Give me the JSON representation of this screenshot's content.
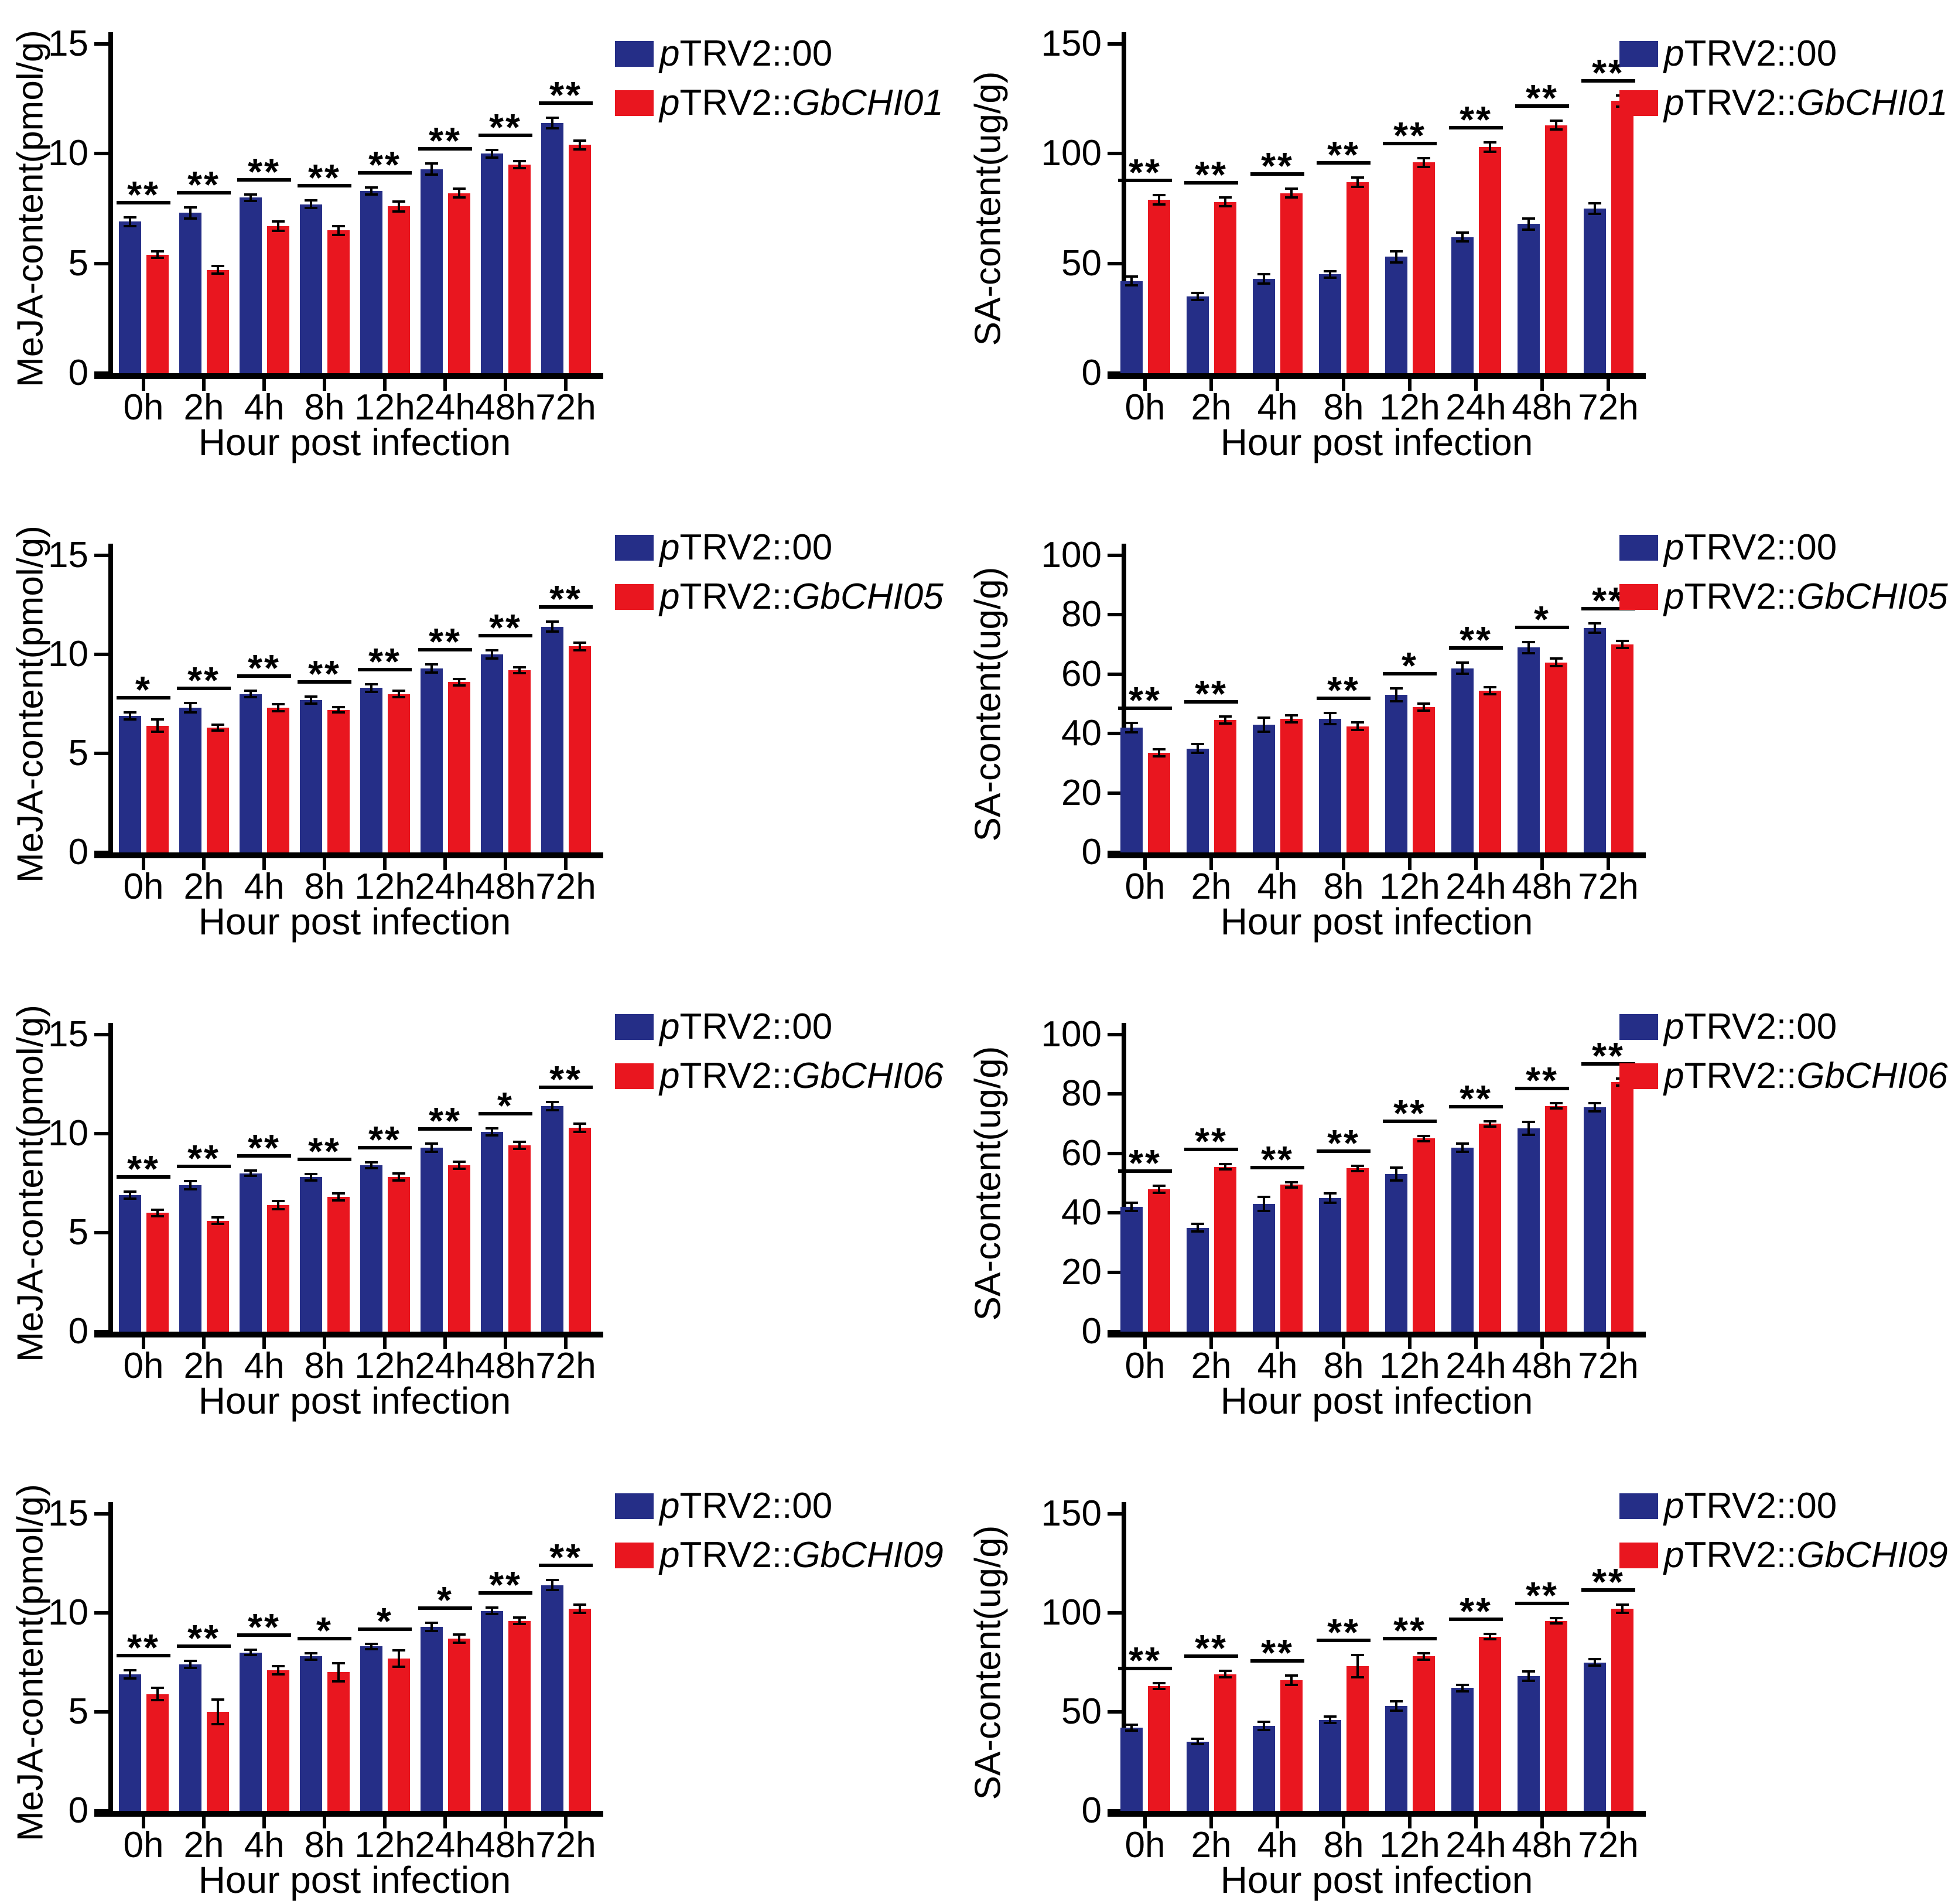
{
  "figure": {
    "background": "#ffffff",
    "control_color": "#252e87",
    "silenced_color": "#e9161f",
    "axis_color": "#000000",
    "x_axis_label": "Hour post infection",
    "categories": [
      "0h",
      "2h",
      "4h",
      "8h",
      "12h",
      "24h",
      "48h",
      "72h"
    ]
  },
  "chart_data": [
    {
      "id": "meja-gbchi01",
      "type": "bar",
      "ylabel": "MeJA-content(pmol/g)",
      "xlabel": "Hour post infection",
      "ylim": [
        0,
        15
      ],
      "yticks": [
        0,
        5,
        10,
        15
      ],
      "categories": [
        "0h",
        "2h",
        "4h",
        "8h",
        "12h",
        "24h",
        "48h",
        "72h"
      ],
      "series": [
        {
          "name": "pTRV2::00",
          "color": "#252e87",
          "values": [
            6.9,
            7.3,
            8.0,
            7.7,
            8.3,
            9.3,
            10.0,
            11.4
          ],
          "errors": [
            0.15,
            0.2,
            0.1,
            0.12,
            0.1,
            0.2,
            0.12,
            0.18
          ]
        },
        {
          "name": "pTRV2::GbCHI01",
          "color": "#e9161f",
          "values": [
            5.4,
            4.7,
            6.7,
            6.5,
            7.6,
            8.2,
            9.5,
            10.4
          ],
          "errors": [
            0.1,
            0.12,
            0.15,
            0.15,
            0.18,
            0.15,
            0.1,
            0.15
          ]
        }
      ],
      "significance": [
        "**",
        "**",
        "**",
        "**",
        "**",
        "**",
        "**",
        "**"
      ],
      "legend": [
        {
          "italic_prefix": "p",
          "text": "TRV2::00",
          "italic_gene": ""
        },
        {
          "italic_prefix": "p",
          "text": "TRV2::",
          "italic_gene": "GbCHI01"
        }
      ],
      "legend_position": "top-right",
      "grid": false
    },
    {
      "id": "sa-gbchi01",
      "type": "bar",
      "ylabel": "SA-content(ug/g)",
      "xlabel": "Hour post infection",
      "ylim": [
        0,
        150
      ],
      "yticks": [
        0,
        50,
        100,
        150
      ],
      "categories": [
        "0h",
        "2h",
        "4h",
        "8h",
        "12h",
        "24h",
        "48h",
        "72h"
      ],
      "series": [
        {
          "name": "pTRV2::00",
          "color": "#252e87",
          "values": [
            42,
            35,
            43,
            45,
            53,
            62,
            68,
            75
          ],
          "errors": [
            1.5,
            1,
            1.5,
            1,
            2,
            1.5,
            2,
            2
          ]
        },
        {
          "name": "pTRV2::GbCHI01",
          "color": "#e9161f",
          "values": [
            79,
            78,
            82,
            87,
            96,
            103,
            113,
            124
          ],
          "errors": [
            1.5,
            1.5,
            1.5,
            1.5,
            1.5,
            1.5,
            1.5,
            2
          ]
        }
      ],
      "significance": [
        "**",
        "**",
        "**",
        "**",
        "**",
        "**",
        "**",
        "**"
      ],
      "legend": [
        {
          "italic_prefix": "p",
          "text": "TRV2::00",
          "italic_gene": ""
        },
        {
          "italic_prefix": "p",
          "text": "TRV2::",
          "italic_gene": "GbCHI01"
        }
      ],
      "legend_position": "top-right",
      "grid": false
    },
    {
      "id": "meja-gbchi05",
      "type": "bar",
      "ylabel": "MeJA-content(pmol/g)",
      "xlabel": "Hour post infection",
      "ylim": [
        0,
        15
      ],
      "yticks": [
        0,
        5,
        10,
        15
      ],
      "categories": [
        "0h",
        "2h",
        "4h",
        "8h",
        "12h",
        "24h",
        "48h",
        "72h"
      ],
      "series": [
        {
          "name": "pTRV2::00",
          "color": "#252e87",
          "values": [
            6.9,
            7.3,
            8.0,
            7.7,
            8.3,
            9.3,
            10.0,
            11.4
          ],
          "errors": [
            0.12,
            0.18,
            0.1,
            0.12,
            0.12,
            0.15,
            0.15,
            0.2
          ]
        },
        {
          "name": "pTRV2::GbCHI05",
          "color": "#e9161f",
          "values": [
            6.4,
            6.3,
            7.3,
            7.2,
            8.0,
            8.6,
            9.2,
            10.4
          ],
          "errors": [
            0.25,
            0.1,
            0.12,
            0.08,
            0.1,
            0.1,
            0.1,
            0.12
          ]
        }
      ],
      "significance": [
        "*",
        "**",
        "**",
        "**",
        "**",
        "**",
        "**",
        "**"
      ],
      "legend": [
        {
          "italic_prefix": "p",
          "text": "TRV2::00",
          "italic_gene": ""
        },
        {
          "italic_prefix": "p",
          "text": "TRV2::",
          "italic_gene": "GbCHI05"
        }
      ],
      "legend_position": "top-right",
      "grid": false
    },
    {
      "id": "sa-gbchi05",
      "type": "bar",
      "ylabel": "SA-content(ug/g)",
      "xlabel": "Hour post infection",
      "ylim": [
        0,
        100
      ],
      "yticks": [
        0,
        20,
        40,
        60,
        80,
        100
      ],
      "categories": [
        "0h",
        "2h",
        "4h",
        "8h",
        "12h",
        "24h",
        "48h",
        "72h"
      ],
      "series": [
        {
          "name": "pTRV2::00",
          "color": "#252e87",
          "values": [
            42,
            35,
            43,
            45,
            53,
            62,
            69,
            75.5
          ],
          "errors": [
            1.2,
            1,
            2,
            1.5,
            1.8,
            1.5,
            1.5,
            1.2
          ]
        },
        {
          "name": "pTRV2::GbCHI05",
          "color": "#e9161f",
          "values": [
            33.5,
            44.5,
            45,
            42.5,
            49,
            54.5,
            64,
            70
          ],
          "errors": [
            0.8,
            0.8,
            0.8,
            0.8,
            0.8,
            0.8,
            0.8,
            0.8
          ]
        }
      ],
      "significance": [
        "**",
        "**",
        "",
        "**",
        "*",
        "**",
        "*",
        "**"
      ],
      "legend": [
        {
          "italic_prefix": "p",
          "text": "TRV2::00",
          "italic_gene": ""
        },
        {
          "italic_prefix": "p",
          "text": "TRV2::",
          "italic_gene": "GbCHI05"
        }
      ],
      "legend_position": "top-right",
      "grid": false
    },
    {
      "id": "meja-gbchi06",
      "type": "bar",
      "ylabel": "MeJA-content(pmol/g)",
      "xlabel": "Hour post infection",
      "ylim": [
        0,
        15
      ],
      "yticks": [
        0,
        5,
        10,
        15
      ],
      "categories": [
        "0h",
        "2h",
        "4h",
        "8h",
        "12h",
        "24h",
        "48h",
        "72h"
      ],
      "series": [
        {
          "name": "pTRV2::00",
          "color": "#252e87",
          "values": [
            6.9,
            7.4,
            8.0,
            7.8,
            8.4,
            9.3,
            10.1,
            11.4
          ],
          "errors": [
            0.12,
            0.15,
            0.08,
            0.1,
            0.1,
            0.15,
            0.12,
            0.15
          ]
        },
        {
          "name": "pTRV2::GbCHI06",
          "color": "#e9161f",
          "values": [
            6.0,
            5.6,
            6.4,
            6.8,
            7.8,
            8.4,
            9.4,
            10.3
          ],
          "errors": [
            0.1,
            0.1,
            0.15,
            0.12,
            0.12,
            0.12,
            0.12,
            0.15
          ]
        }
      ],
      "significance": [
        "**",
        "**",
        "**",
        "**",
        "**",
        "**",
        "*",
        "**"
      ],
      "legend": [
        {
          "italic_prefix": "p",
          "text": "TRV2::00",
          "italic_gene": ""
        },
        {
          "italic_prefix": "p",
          "text": "TRV2::",
          "italic_gene": "GbCHI06"
        }
      ],
      "legend_position": "top-right",
      "grid": false
    },
    {
      "id": "sa-gbchi06",
      "type": "bar",
      "ylabel": "SA-content(ug/g)",
      "xlabel": "Hour post infection",
      "ylim": [
        0,
        100
      ],
      "yticks": [
        0,
        20,
        40,
        60,
        80,
        100
      ],
      "categories": [
        "0h",
        "2h",
        "4h",
        "8h",
        "12h",
        "24h",
        "48h",
        "72h"
      ],
      "series": [
        {
          "name": "pTRV2::00",
          "color": "#252e87",
          "values": [
            42,
            35,
            43,
            45,
            53,
            62,
            68.5,
            75.5
          ],
          "errors": [
            1,
            0.8,
            2,
            1.2,
            1.8,
            1,
            1.8,
            1
          ]
        },
        {
          "name": "pTRV2::GbCHI06",
          "color": "#e9161f",
          "values": [
            48,
            55.5,
            49.5,
            55,
            65,
            70,
            76,
            84
          ],
          "errors": [
            0.8,
            0.5,
            0.5,
            0.5,
            0.5,
            0.5,
            0.5,
            0.8
          ]
        }
      ],
      "significance": [
        "**",
        "**",
        "**",
        "**",
        "**",
        "**",
        "**",
        "**"
      ],
      "legend": [
        {
          "italic_prefix": "p",
          "text": "TRV2::00",
          "italic_gene": ""
        },
        {
          "italic_prefix": "p",
          "text": "TRV2::",
          "italic_gene": "GbCHI06"
        }
      ],
      "legend_position": "top-right",
      "grid": false
    },
    {
      "id": "meja-gbchi09",
      "type": "bar",
      "ylabel": "MeJA-content(pmol/g)",
      "xlabel": "Hour post infection",
      "ylim": [
        0,
        15
      ],
      "yticks": [
        0,
        5,
        10,
        15
      ],
      "categories": [
        "0h",
        "2h",
        "4h",
        "8h",
        "12h",
        "24h",
        "48h",
        "72h"
      ],
      "series": [
        {
          "name": "pTRV2::00",
          "color": "#252e87",
          "values": [
            6.9,
            7.4,
            8.0,
            7.8,
            8.3,
            9.3,
            10.1,
            11.4
          ],
          "errors": [
            0.15,
            0.12,
            0.08,
            0.1,
            0.08,
            0.15,
            0.1,
            0.2
          ]
        },
        {
          "name": "pTRV2::GbCHI09",
          "color": "#e9161f",
          "values": [
            5.9,
            5.0,
            7.1,
            7.0,
            7.7,
            8.7,
            9.6,
            10.2
          ],
          "errors": [
            0.25,
            0.55,
            0.15,
            0.4,
            0.35,
            0.15,
            0.1,
            0.15
          ]
        }
      ],
      "significance": [
        "**",
        "**",
        "**",
        "*",
        "*",
        "*",
        "**",
        "**"
      ],
      "legend": [
        {
          "italic_prefix": "p",
          "text": "TRV2::00",
          "italic_gene": ""
        },
        {
          "italic_prefix": "p",
          "text": "TRV2::",
          "italic_gene": "GbCHI09"
        }
      ],
      "legend_position": "top-right",
      "grid": false
    },
    {
      "id": "sa-gbchi09",
      "type": "bar",
      "ylabel": "SA-content(ug/g)",
      "xlabel": "Hour post infection",
      "ylim": [
        0,
        150
      ],
      "yticks": [
        0,
        50,
        100,
        150
      ],
      "categories": [
        "0h",
        "2h",
        "4h",
        "8h",
        "12h",
        "24h",
        "48h",
        "72h"
      ],
      "series": [
        {
          "name": "pTRV2::00",
          "color": "#252e87",
          "values": [
            42,
            35,
            43,
            46,
            53,
            62,
            68,
            75
          ],
          "errors": [
            0.8,
            0.8,
            1.5,
            1,
            1.8,
            1,
            1.8,
            1
          ]
        },
        {
          "name": "pTRV2::GbCHI09",
          "color": "#e9161f",
          "values": [
            63,
            69,
            66,
            73,
            78,
            88,
            96,
            102
          ],
          "errors": [
            1,
            1,
            1.8,
            5,
            1,
            0.8,
            0.8,
            1.5
          ]
        }
      ],
      "significance": [
        "**",
        "**",
        "**",
        "**",
        "**",
        "**",
        "**",
        "**"
      ],
      "legend": [
        {
          "italic_prefix": "p",
          "text": "TRV2::00",
          "italic_gene": ""
        },
        {
          "italic_prefix": "p",
          "text": "TRV2::",
          "italic_gene": "GbCHI09"
        }
      ],
      "legend_position": "top-right",
      "grid": false
    }
  ]
}
